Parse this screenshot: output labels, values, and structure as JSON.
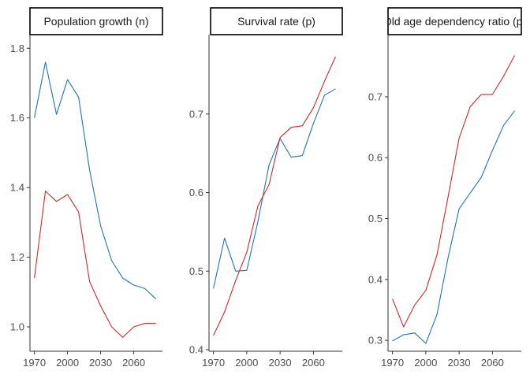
{
  "chart_data": [
    {
      "type": "line",
      "title": "Population growth (n)",
      "x": [
        1970,
        1980,
        1990,
        2000,
        2010,
        2020,
        2030,
        2040,
        2050,
        2060,
        2070,
        2080
      ],
      "x_ticks": [
        1970,
        2000,
        2030,
        2060
      ],
      "x_tick_labels": [
        "1970",
        "2000",
        "2030",
        "2060"
      ],
      "ylim": [
        0.93,
        1.83
      ],
      "y_ticks": [
        1.0,
        1.2,
        1.4,
        1.6,
        1.8
      ],
      "y_tick_labels": [
        "1.0",
        "1.2",
        "1.4",
        "1.6",
        "1.8"
      ],
      "series": [
        {
          "name": "blue",
          "color": "#1f77b4",
          "values": [
            1.6,
            1.76,
            1.61,
            1.71,
            1.66,
            1.45,
            1.29,
            1.19,
            1.14,
            1.12,
            1.11,
            1.08
          ]
        },
        {
          "name": "red",
          "color": "#d62728",
          "values": [
            1.14,
            1.39,
            1.36,
            1.38,
            1.33,
            1.13,
            1.06,
            1.0,
            0.97,
            1.0,
            1.01,
            1.01
          ]
        }
      ]
    },
    {
      "type": "line",
      "title": "Survival rate (p)",
      "x": [
        1970,
        1980,
        1990,
        2000,
        2010,
        2020,
        2030,
        2040,
        2050,
        2060,
        2070,
        2080
      ],
      "x_ticks": [
        1970,
        2000,
        2030,
        2060
      ],
      "x_tick_labels": [
        "1970",
        "2000",
        "2030",
        "2060"
      ],
      "ylim": [
        0.398,
        0.797
      ],
      "y_ticks": [
        0.4,
        0.5,
        0.6,
        0.7
      ],
      "y_tick_labels": [
        "0.4",
        "0.5",
        "0.6",
        "0.7"
      ],
      "series": [
        {
          "name": "blue",
          "color": "#1f77b4",
          "values": [
            0.478,
            0.542,
            0.5,
            0.501,
            0.563,
            0.635,
            0.669,
            0.645,
            0.647,
            0.688,
            0.724,
            0.732
          ]
        },
        {
          "name": "red",
          "color": "#d62728",
          "values": [
            0.418,
            0.448,
            0.488,
            0.524,
            0.583,
            0.61,
            0.67,
            0.683,
            0.685,
            0.708,
            0.742,
            0.773
          ]
        }
      ]
    },
    {
      "type": "line",
      "title": "Old age dependency ratio (p)",
      "x": [
        1970,
        1980,
        1990,
        2000,
        2010,
        2020,
        2030,
        2040,
        2050,
        2060,
        2070,
        2080
      ],
      "x_ticks": [
        1970,
        2000,
        2030,
        2060
      ],
      "x_tick_labels": [
        "1970",
        "2000",
        "2030",
        "2060"
      ],
      "ylim": [
        0.282,
        0.797
      ],
      "y_ticks": [
        0.3,
        0.4,
        0.5,
        0.6,
        0.7
      ],
      "y_tick_labels": [
        "0.3",
        "0.4",
        "0.5",
        "0.6",
        "0.7"
      ],
      "series": [
        {
          "name": "blue",
          "color": "#1f77b4",
          "values": [
            0.299,
            0.309,
            0.312,
            0.295,
            0.342,
            0.435,
            0.516,
            0.542,
            0.568,
            0.612,
            0.653,
            0.677
          ]
        },
        {
          "name": "red",
          "color": "#d62728",
          "values": [
            0.368,
            0.322,
            0.358,
            0.382,
            0.44,
            0.535,
            0.632,
            0.684,
            0.704,
            0.704,
            0.734,
            0.768
          ]
        }
      ]
    }
  ]
}
